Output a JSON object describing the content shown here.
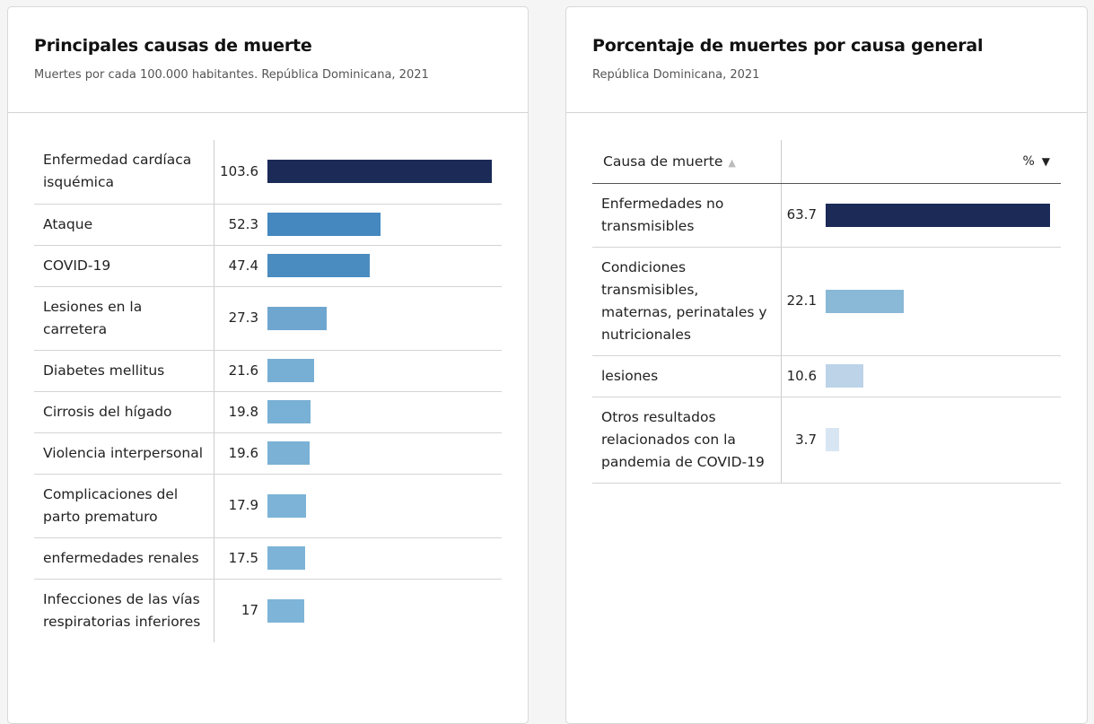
{
  "chart_data": [
    {
      "type": "bar",
      "title": "Principales causas de muerte",
      "subtitle": "Muertes por cada 100.000 habitantes. República Dominicana, 2021",
      "categories": [
        "Enfermedad cardíaca isquémica",
        "Ataque",
        "COVID-19",
        "Lesiones en la carretera",
        "Diabetes mellitus",
        "Cirrosis del hígado",
        "Violencia interpersonal",
        "Complicaciones del parto prematuro",
        "enfermedades renales",
        "Infecciones de las vías respiratorias inferiores"
      ],
      "values": [
        "103.6",
        "52.3",
        "47.4",
        "27.3",
        "21.6",
        "19.8",
        "19.6",
        "17.9",
        "17.5",
        "17"
      ],
      "colors": [
        "#1b2a57",
        "#4488bf",
        "#4a8cc0",
        "#6fa6cf",
        "#77aed4",
        "#79b0d5",
        "#7ab1d5",
        "#7cb3d7",
        "#7db3d7",
        "#7db4d7"
      ],
      "max": 103.6
    },
    {
      "type": "table",
      "title": "Porcentaje de muertes por causa general",
      "subtitle": "República Dominicana, 2021",
      "headers": [
        "Causa de muerte",
        "%"
      ],
      "categories": [
        "Enfermedades no transmisibles",
        "Condiciones transmisibles, maternas, perinatales y nutricionales",
        "lesiones",
        "Otros resultados relacionados con la pandemia de COVID-19"
      ],
      "values": [
        "63.7",
        "22.1",
        "10.6",
        "3.7"
      ],
      "colors": [
        "#1b2a57",
        "#8ab8d7",
        "#bcd3e8",
        "#d8e6f3"
      ],
      "max": 63.7
    }
  ]
}
